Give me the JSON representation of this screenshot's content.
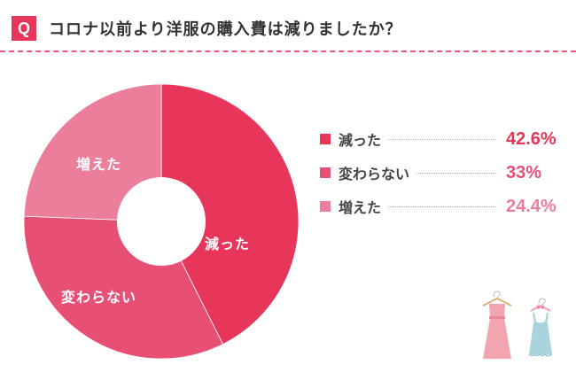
{
  "header": {
    "badge": "Q",
    "title": "コロナ以前より洋服の購入費は減りましたか？"
  },
  "colors": {
    "accent": "#e8355a",
    "decreased": "#e8355a",
    "unchanged": "#e84f75",
    "increased": "#eb7f9b"
  },
  "legend": [
    {
      "label": "減った",
      "value": "42.6%",
      "color": "#e8355a"
    },
    {
      "label": "変わらない",
      "value": "33%",
      "color": "#e84f75"
    },
    {
      "label": "増えた",
      "value": "24.4%",
      "color": "#eb7f9b"
    }
  ],
  "slice_labels": {
    "decreased": "減った",
    "unchanged": "変わらない",
    "increased": "増えた"
  },
  "illustration": {
    "icon": "dresses-on-hangers-icon"
  },
  "chart_data": {
    "type": "pie",
    "variant": "donut",
    "title": "コロナ以前より洋服の購入費は減りましたか？",
    "categories": [
      "減った",
      "変わらない",
      "増えた"
    ],
    "values": [
      42.6,
      33,
      24.4
    ],
    "unit": "%",
    "colors": [
      "#e8355a",
      "#e84f75",
      "#eb7f9b"
    ],
    "start_angle": "12 o'clock, clockwise",
    "legend_position": "right"
  }
}
